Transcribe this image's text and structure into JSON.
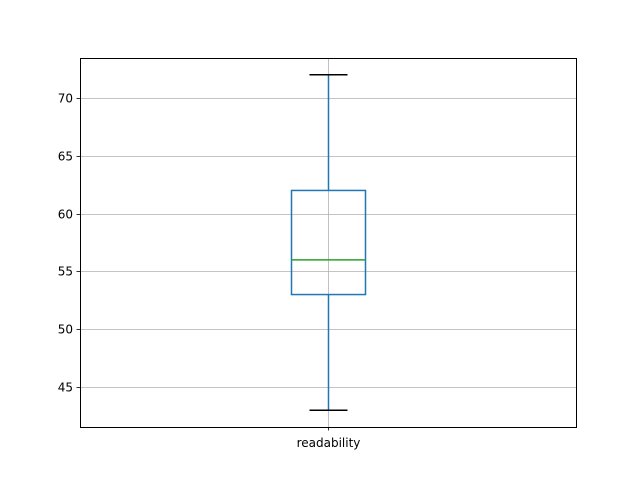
{
  "chart_data": {
    "type": "box",
    "categories": [
      "readability"
    ],
    "boxes": [
      {
        "category": "readability",
        "whisker_low": 43,
        "q1": 53,
        "median": 56,
        "q3": 62,
        "whisker_high": 72
      }
    ],
    "ylim": [
      41.55,
      73.45
    ],
    "yticks": [
      45,
      50,
      55,
      60,
      65,
      70
    ],
    "grid": true,
    "colors": {
      "box": "#1f77b4",
      "median": "#2ca02c",
      "caps": "#000000",
      "grid": "#b0b0b0"
    }
  }
}
